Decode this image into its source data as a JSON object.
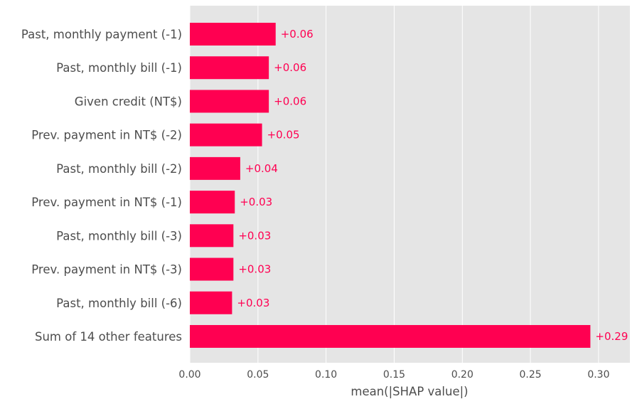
{
  "chart_data": {
    "type": "bar",
    "orientation": "horizontal",
    "categories": [
      "Past, monthly payment (-1)",
      "Past, monthly bill (-1)",
      "Given credit (NT$)",
      "Prev. payment in NT$ (-2)",
      "Past, monthly bill (-2)",
      "Prev. payment in NT$ (-1)",
      "Past, monthly bill (-3)",
      "Prev. payment in NT$ (-3)",
      "Past, monthly bill (-6)",
      "Sum of 14 other features"
    ],
    "values": [
      0.063,
      0.058,
      0.058,
      0.053,
      0.037,
      0.033,
      0.032,
      0.032,
      0.031,
      0.294
    ],
    "value_labels": [
      "+0.06",
      "+0.06",
      "+0.06",
      "+0.05",
      "+0.04",
      "+0.03",
      "+0.03",
      "+0.03",
      "+0.03",
      "+0.29"
    ],
    "title": "",
    "xlabel": "mean(|SHAP value|)",
    "ylabel": "",
    "xlim": [
      0,
      0.323
    ],
    "xticks": [
      0.0,
      0.05,
      0.1,
      0.15,
      0.2,
      0.25,
      0.3
    ],
    "xtick_labels": [
      "0.00",
      "0.05",
      "0.10",
      "0.15",
      "0.20",
      "0.25",
      "0.30"
    ],
    "grid": true,
    "legend": "none",
    "colors": {
      "bar": "#ff0051",
      "plot_background": "#e5e5e5",
      "grid": "#ffffff",
      "text": "#4d4d4d"
    }
  }
}
